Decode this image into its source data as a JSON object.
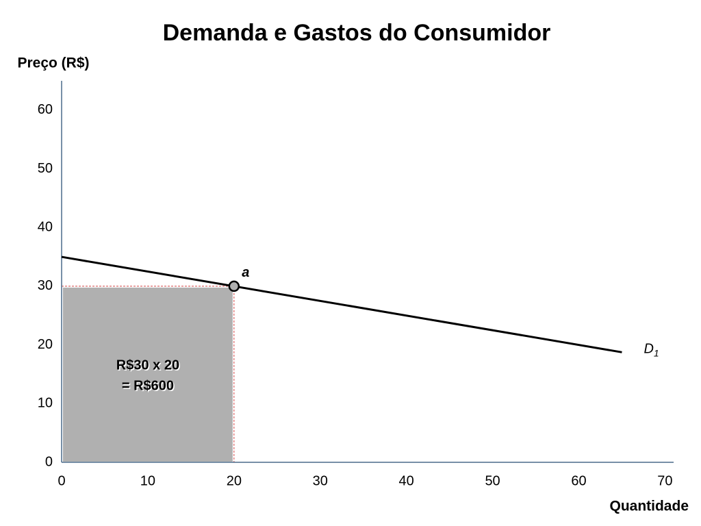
{
  "chart_data": {
    "type": "line",
    "title": "Demanda e Gastos do Consumidor",
    "y_label": "Preço (R$)",
    "x_label": "Quantidade",
    "xlim": [
      0,
      71
    ],
    "ylim": [
      0,
      65
    ],
    "xticks": [
      0,
      10,
      20,
      30,
      40,
      50,
      60,
      70
    ],
    "yticks": [
      0,
      10,
      20,
      30,
      40,
      50,
      60
    ],
    "grid": false,
    "series": [
      {
        "name": "D",
        "name_sub": "1",
        "color": "#000000",
        "x": [
          0,
          65
        ],
        "values": [
          35,
          18.75
        ]
      }
    ],
    "point": {
      "label": "a",
      "x": 20,
      "y": 30
    },
    "expenditure": {
      "color": "#b0b0b0",
      "label_lines": [
        "R$30 x 20",
        "= R$600"
      ]
    }
  }
}
